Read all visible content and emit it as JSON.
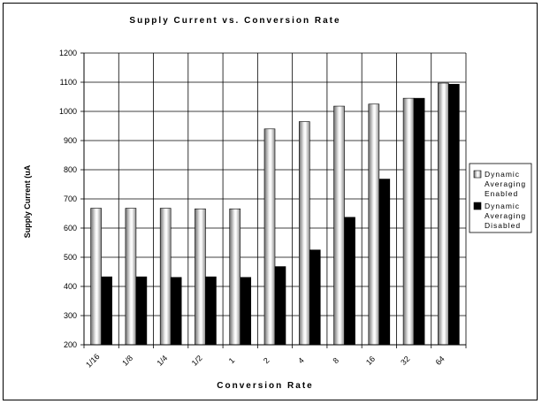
{
  "chart_data": {
    "type": "bar",
    "title": "Supply Current vs. Conversion Rate",
    "xlabel": "Conversion Rate",
    "ylabel": "Supply Current (uA",
    "categories": [
      "1/16",
      "1/8",
      "1/4",
      "1/2",
      "1",
      "2",
      "4",
      "8",
      "16",
      "32",
      "64"
    ],
    "ylim": [
      200,
      1200
    ],
    "yticks": [
      200,
      300,
      400,
      500,
      600,
      700,
      800,
      900,
      1000,
      1100,
      1200
    ],
    "grid": true,
    "legend_position": "right",
    "series": [
      {
        "name": "Dynamic Averaging Enabled",
        "legend_lines": [
          "Dynamic",
          "Averaging",
          "Enabled"
        ],
        "values": [
          668,
          668,
          668,
          666,
          666,
          940,
          965,
          1018,
          1025,
          1045,
          1097
        ],
        "color": "#c8c8c8"
      },
      {
        "name": "Dynamic Averaging Disabled",
        "legend_lines": [
          "Dynamic",
          "Averaging",
          "Disabled"
        ],
        "values": [
          433,
          433,
          431,
          433,
          431,
          468,
          525,
          637,
          768,
          1045,
          1093
        ],
        "color": "#000000"
      }
    ]
  }
}
